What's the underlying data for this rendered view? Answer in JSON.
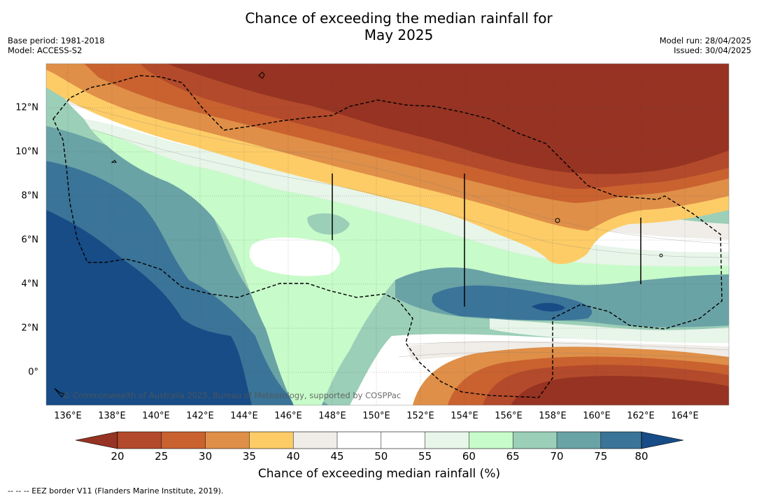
{
  "title_line1": "Chance of exceeding the median rainfall for",
  "title_line2": "May 2025",
  "base_period": "Base period: 1981-2018",
  "model": "Model: ACCESS-S2",
  "model_run": "Model run: 28/04/2025",
  "issued": "Issued: 30/04/2025",
  "credit": "© Commonwealth of Australia 2025, Bureau of Meteorology, supported by COSPPac",
  "lon_labels": [
    "136°E",
    "138°E",
    "140°E",
    "142°E",
    "144°E",
    "146°E",
    "148°E",
    "150°E",
    "152°E",
    "154°E",
    "156°E",
    "158°E",
    "160°E",
    "162°E",
    "164°E"
  ],
  "lat_labels": [
    "12°N",
    "10°N",
    "8°N",
    "6°N",
    "4°N",
    "2°N",
    "0°"
  ],
  "colorbar": {
    "title": "Chance of exceeding median rainfall (%)",
    "ticks": [
      "20",
      "25",
      "30",
      "35",
      "40",
      "45",
      "50",
      "55",
      "60",
      "65",
      "70",
      "75",
      "80"
    ],
    "colors": [
      "#963322",
      "#b34a2b",
      "#c9622f",
      "#df8f48",
      "#fdcc67",
      "#f0ede8",
      "#ffffff",
      "#ffffff",
      "#e8f5e9",
      "#c8fbca",
      "#9bcfb7",
      "#6aa3a6",
      "#3a7498",
      "#174c86"
    ]
  },
  "footnote": "--  --  -- EEZ border V11 (Flanders Marine Institute, 2019)."
}
